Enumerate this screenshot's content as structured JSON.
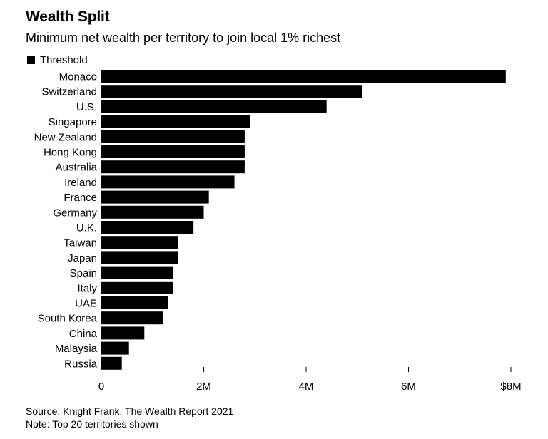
{
  "header": {
    "title": "Wealth Split",
    "subtitle": "Minimum net wealth per territory to join local 1% richest"
  },
  "legend": {
    "label": "Threshold",
    "color": "#000000"
  },
  "chart_data": {
    "type": "bar",
    "orientation": "horizontal",
    "title": "Wealth Split",
    "subtitle": "Minimum net wealth per territory to join local 1% richest",
    "xlabel": "",
    "ylabel": "",
    "xlim": [
      0,
      8000000
    ],
    "ticks": [
      {
        "value": 0,
        "label": "0"
      },
      {
        "value": 2000000,
        "label": "2M"
      },
      {
        "value": 4000000,
        "label": "4M"
      },
      {
        "value": 6000000,
        "label": "6M"
      },
      {
        "value": 8000000,
        "label": "$8M"
      }
    ],
    "grid": false,
    "legend_position": "top-left",
    "series": [
      {
        "name": "Threshold",
        "color": "#000000",
        "categories": [
          "Monaco",
          "Switzerland",
          "U.S.",
          "Singapore",
          "New Zealand",
          "Hong Kong",
          "Australia",
          "Ireland",
          "France",
          "Germany",
          "U.K.",
          "Taiwan",
          "Japan",
          "Spain",
          "Italy",
          "UAE",
          "South Korea",
          "China",
          "Malaysia",
          "Russia"
        ],
        "values": [
          7900000,
          5100000,
          4400000,
          2900000,
          2800000,
          2800000,
          2800000,
          2600000,
          2100000,
          2000000,
          1800000,
          1500000,
          1500000,
          1400000,
          1400000,
          1300000,
          1200000,
          840000,
          540000,
          400000
        ]
      }
    ]
  },
  "footer": {
    "source": "Source: Knight Frank, The Wealth Report 2021",
    "note": "Note: Top 20 territories shown"
  }
}
